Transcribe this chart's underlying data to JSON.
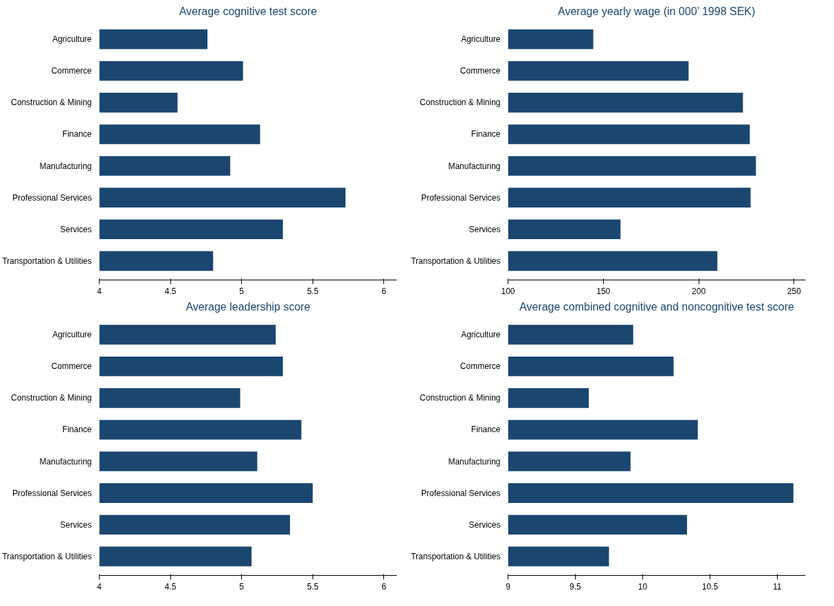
{
  "chart_data": [
    {
      "type": "bar",
      "orientation": "horizontal",
      "title": "Average cognitive test score",
      "categories": [
        "Agriculture",
        "Commerce",
        "Construction & Mining",
        "Finance",
        "Manufacturing",
        "Professional Services",
        "Services",
        "Transportation & Utilities"
      ],
      "values": [
        4.76,
        5.01,
        4.55,
        5.13,
        4.92,
        5.73,
        5.29,
        4.8
      ],
      "color": "#1a4670",
      "xlim": [
        4,
        6.09
      ],
      "xticks": [
        4,
        4.5,
        5,
        5.5,
        6
      ]
    },
    {
      "type": "bar",
      "orientation": "horizontal",
      "title": "Average yearly wage (in 000’ 1998 SEK)",
      "categories": [
        "Agriculture",
        "Commerce",
        "Construction & Mining",
        "Finance",
        "Manufacturing",
        "Professional Services",
        "Services",
        "Transportation & Utilities"
      ],
      "values": [
        144.7,
        194.7,
        223.2,
        226.8,
        230,
        227.2,
        159,
        209.8
      ],
      "color": "#1a4670",
      "xlim": [
        100,
        256
      ],
      "xticks": [
        100,
        150,
        200,
        250
      ]
    },
    {
      "type": "bar",
      "orientation": "horizontal",
      "title": "Average leadership score",
      "categories": [
        "Agriculture",
        "Commerce",
        "Construction & Mining",
        "Finance",
        "Manufacturing",
        "Professional Services",
        "Services",
        "Transportation & Utilities"
      ],
      "values": [
        5.24,
        5.29,
        4.99,
        5.42,
        5.11,
        5.5,
        5.34,
        5.07
      ],
      "color": "#1a4670",
      "xlim": [
        4,
        6.09
      ],
      "xticks": [
        4,
        4.5,
        5,
        5.5,
        6
      ]
    },
    {
      "type": "bar",
      "orientation": "horizontal",
      "title": "Average combined cognitive and noncognitive test score",
      "categories": [
        "Agriculture",
        "Commerce",
        "Construction & Mining",
        "Finance",
        "Manufacturing",
        "Professional Services",
        "Services",
        "Transportation & Utilities"
      ],
      "values": [
        9.93,
        10.23,
        9.6,
        10.41,
        9.91,
        11.12,
        10.33,
        9.75
      ],
      "color": "#1a4670",
      "xlim": [
        9,
        11.21
      ],
      "xticks": [
        9,
        9.5,
        10,
        10.5,
        11
      ]
    }
  ]
}
